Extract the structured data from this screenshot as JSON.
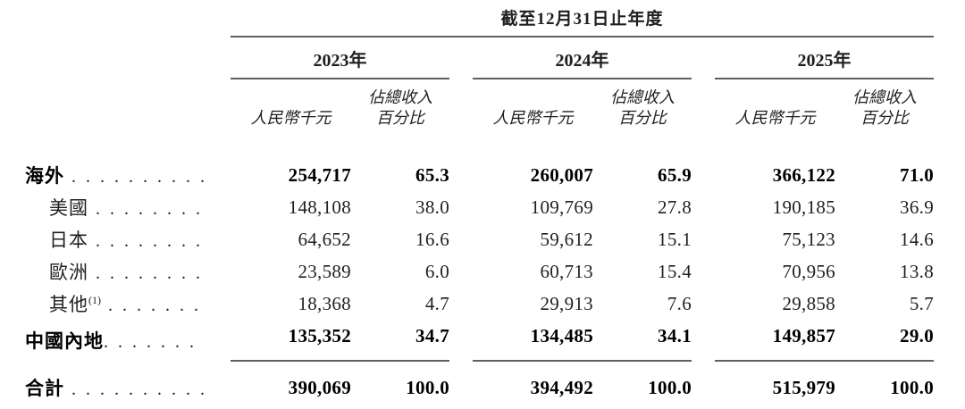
{
  "page": {
    "background": "#ffffff",
    "text_color": "#1f1f1f",
    "rule_color": "#5f5f5f"
  },
  "table": {
    "period_title": "截至12月31日止年度",
    "years": [
      "2023年",
      "2024年",
      "2025年"
    ],
    "col_headers": {
      "amount": "人民幣千元",
      "pct_line1": "佔總收入",
      "pct_line2": "百分比"
    },
    "rows": [
      {
        "label": "海外",
        "sup": "",
        "dots": " . . . . . . . . . .",
        "amounts": [
          "254,717",
          "260,007",
          "366,122"
        ],
        "pcts": [
          "65.3",
          "65.9",
          "71.0"
        ]
      },
      {
        "label": "美國",
        "sup": "",
        "dots": " . . . . . . . .",
        "amounts": [
          "148,108",
          "109,769",
          "190,185"
        ],
        "pcts": [
          "38.0",
          "27.8",
          "36.9"
        ]
      },
      {
        "label": "日本",
        "sup": "",
        "dots": " . . . . . . . .",
        "amounts": [
          "64,652",
          "59,612",
          "75,123"
        ],
        "pcts": [
          "16.6",
          "15.1",
          "14.6"
        ]
      },
      {
        "label": "歐洲",
        "sup": "",
        "dots": " . . . . . . . .",
        "amounts": [
          "23,589",
          "60,713",
          "70,956"
        ],
        "pcts": [
          "6.0",
          "15.4",
          "13.8"
        ]
      },
      {
        "label": "其他",
        "sup": "(1)",
        "dots": " . . . . . . .",
        "amounts": [
          "18,368",
          "29,913",
          "29,858"
        ],
        "pcts": [
          "4.7",
          "7.6",
          "5.7"
        ]
      },
      {
        "label": "中國內地",
        "sup": "",
        "dots": ". . . . . . .",
        "amounts": [
          "135,352",
          "134,485",
          "149,857"
        ],
        "pcts": [
          "34.7",
          "34.1",
          "29.0"
        ]
      },
      {
        "label": "合計",
        "sup": "",
        "dots": " . . . . . . . . . .",
        "amounts": [
          "390,069",
          "394,492",
          "515,979"
        ],
        "pcts": [
          "100.0",
          "100.0",
          "100.0"
        ]
      }
    ]
  }
}
